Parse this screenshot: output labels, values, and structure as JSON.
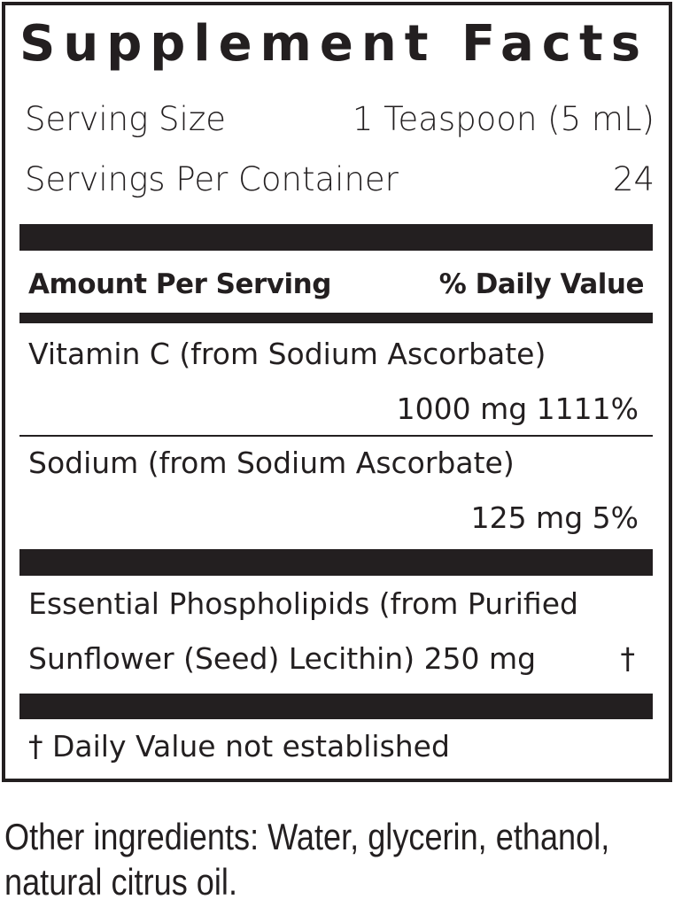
{
  "title": "Supplement Facts",
  "serving_size": {
    "label": "Serving Size",
    "value": "1 Teaspoon (5 mL)"
  },
  "servings_per_container": {
    "label": "Servings Per Container",
    "value": "24"
  },
  "header": {
    "amount": "Amount Per Serving",
    "dv": "% Daily Value"
  },
  "nutrients": [
    {
      "name": "Vitamin C (from Sodium Ascorbate)",
      "amount_dv": "1000 mg 1111%"
    },
    {
      "name": "Sodium (from Sodium Ascorbate)",
      "amount_dv": "125 mg 5%"
    }
  ],
  "other_nutrient": {
    "line1": "Essential Phospholipids (from Purified",
    "line2": "Sunflower (Seed) Lecithin) 250 mg",
    "dv": "†"
  },
  "footnote": "† Daily Value not established",
  "other_ingredients": {
    "line1": "Other ingredients: Water, glycerin, ethanol,",
    "line2": "natural citrus oil."
  }
}
